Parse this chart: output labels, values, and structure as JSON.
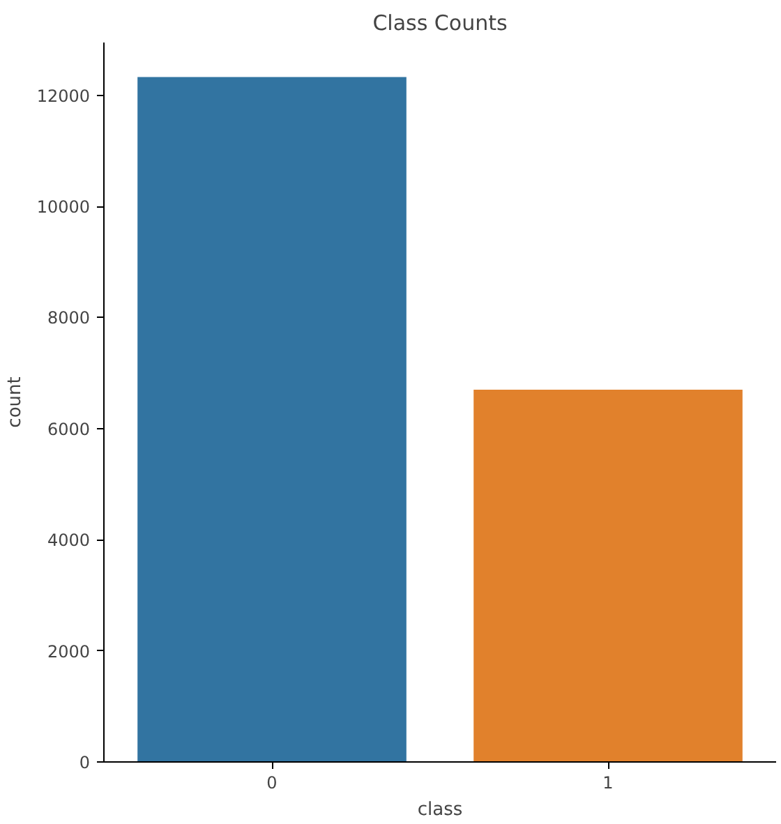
{
  "chart_data": {
    "type": "bar",
    "title": "Class Counts",
    "xlabel": "class",
    "ylabel": "count",
    "categories": [
      "0",
      "1"
    ],
    "series": [
      {
        "colors": [
          "#3274a1",
          "#e1812c"
        ],
        "values": [
          12330,
          6700
        ]
      }
    ],
    "ylim": [
      0,
      12950
    ],
    "yticks": [
      0,
      2000,
      4000,
      6000,
      8000,
      10000,
      12000
    ],
    "grid": false
  }
}
